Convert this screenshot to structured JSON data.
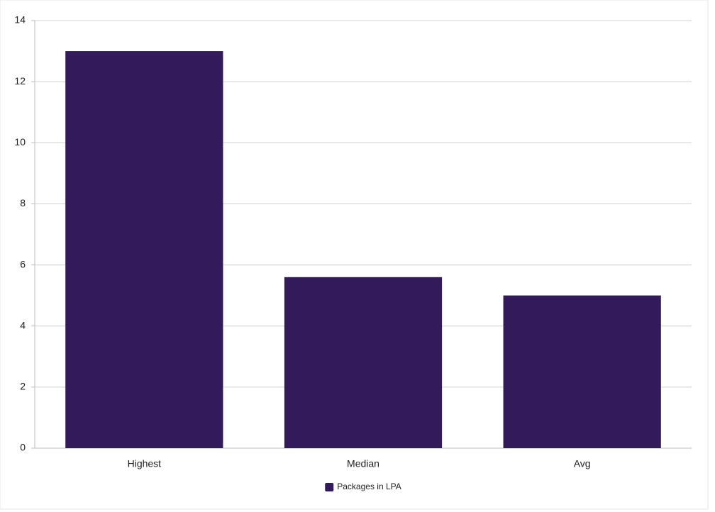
{
  "chart_data": {
    "type": "bar",
    "categories": [
      "Highest",
      "Median",
      "Avg"
    ],
    "series": [
      {
        "name": "Packages in LPA",
        "color": "#321a5b",
        "values": [
          13,
          5.6,
          5
        ]
      }
    ],
    "ylim": [
      0,
      14
    ],
    "yticks": [
      0,
      2,
      4,
      6,
      8,
      10,
      12,
      14
    ],
    "grid": true,
    "legend": "bottom"
  }
}
